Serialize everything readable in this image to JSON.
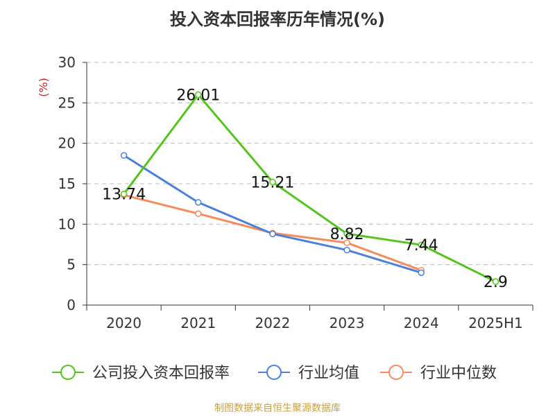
{
  "chart_data": {
    "type": "line",
    "title": "投入资本回报率历年情况(%)",
    "ylabel": "(%)",
    "xlabel": "",
    "categories": [
      "2020",
      "2021",
      "2022",
      "2023",
      "2024",
      "2025H1"
    ],
    "ylim": [
      0,
      30
    ],
    "yticks": [
      0,
      5,
      10,
      15,
      20,
      25,
      30
    ],
    "grid": "horizontal dashed",
    "legend_position": "bottom",
    "series": [
      {
        "name": "公司投入资本回报率",
        "color": "#52c41a",
        "values": [
          13.74,
          26.01,
          15.21,
          8.82,
          7.44,
          2.9
        ],
        "labels": [
          "13.74",
          "26.01",
          "15.21",
          "8.82",
          "7.44",
          "2.9"
        ]
      },
      {
        "name": "行业均值",
        "color": "#4a7fdb",
        "values": [
          18.5,
          12.7,
          8.8,
          6.8,
          4.0,
          null
        ]
      },
      {
        "name": "行业中位数",
        "color": "#f58c5a",
        "values": [
          13.6,
          11.3,
          8.9,
          7.7,
          4.3,
          null
        ]
      }
    ]
  },
  "source": "制图数据来自恒生聚源数据库"
}
